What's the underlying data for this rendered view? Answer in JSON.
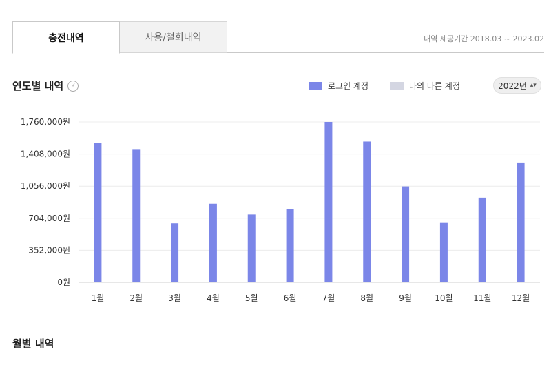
{
  "tabs": [
    {
      "label": "충전내역",
      "active": true
    },
    {
      "label": "사용/철회내역",
      "active": false
    }
  ],
  "period_text": "내역 제공기간 2018.03 ~ 2023.02",
  "yearly_section": {
    "title": "연도별 내역",
    "help_icon": "question-circle-icon"
  },
  "legend": [
    {
      "label": "로그인 계정",
      "color": "#7b86e8"
    },
    {
      "label": "나의 다른 계정",
      "color": "#d4d6e2"
    }
  ],
  "year_select": {
    "value": "2022년",
    "icon": "chevron-updown-icon"
  },
  "chart_data": {
    "type": "bar",
    "categories": [
      "1월",
      "2월",
      "3월",
      "4월",
      "5월",
      "6월",
      "7월",
      "8월",
      "9월",
      "10월",
      "11월",
      "12월"
    ],
    "series": [
      {
        "name": "로그인 계정",
        "color": "#7b86e8",
        "values": [
          1530000,
          1455000,
          648000,
          863000,
          745000,
          803000,
          1760000,
          1545000,
          1053000,
          652000,
          930000,
          1315000
        ]
      }
    ],
    "y_ticks": [
      "0원",
      "352,000원",
      "704,000원",
      "1,056,000원",
      "1,408,000원",
      "1,760,000원"
    ],
    "ylim": [
      0,
      1760000
    ],
    "grid": true
  },
  "monthly_section": {
    "title": "월별 내역"
  }
}
